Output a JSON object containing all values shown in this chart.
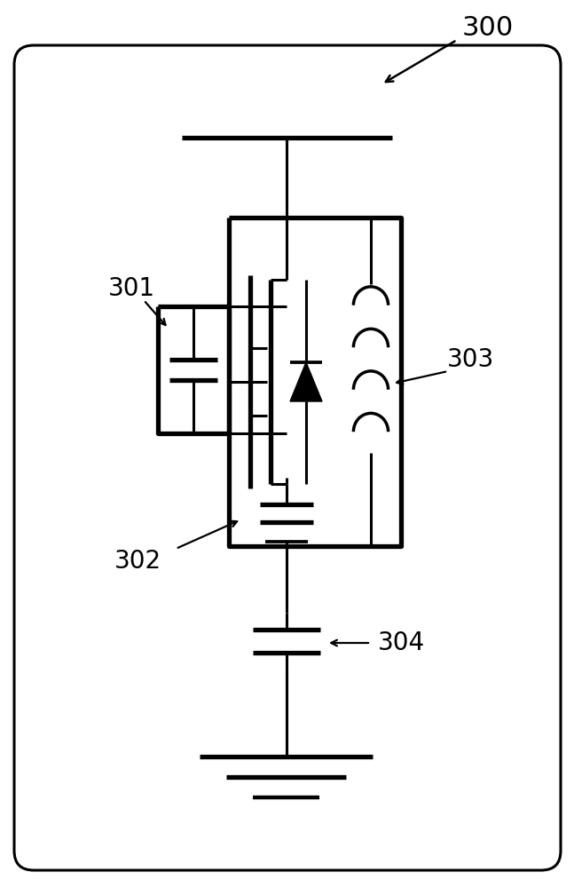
{
  "fig_width": 6.47,
  "fig_height": 10.0,
  "dpi": 100,
  "bg_color": "#ffffff",
  "lc": "#000000",
  "lw": 2.2,
  "tlw": 3.8,
  "label_300": "300",
  "label_301": "301",
  "label_302": "302",
  "label_303": "303",
  "label_304": "304",
  "fs": 20
}
